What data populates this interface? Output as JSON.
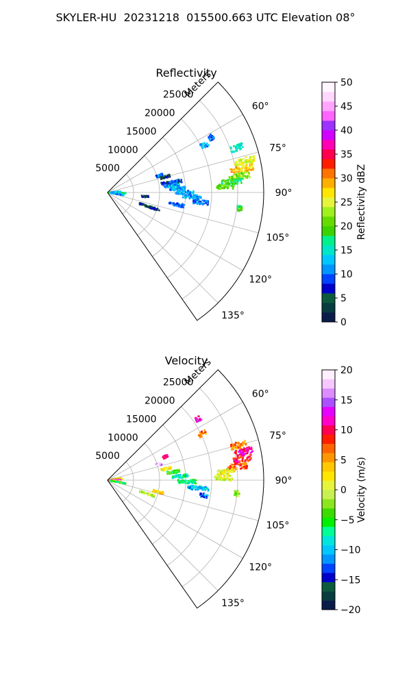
{
  "figure": {
    "title": "SKYLER-HU  20231218  015500.663 UTC Elevation 08°"
  },
  "chart_data": [
    {
      "type": "heatmap",
      "subtype": "polar-sector-radar-ppi",
      "title": "Reflectivity",
      "radial_axis_label": "Meters",
      "radial_ticks": [
        5000,
        10000,
        15000,
        20000,
        25000
      ],
      "radial_tick_labels": [
        "5000",
        "10000",
        "15000",
        "20000",
        "25000"
      ],
      "rlim": [
        0,
        30000
      ],
      "theta_range_deg": [
        45,
        145
      ],
      "theta_ticks": [
        60,
        75,
        90,
        105,
        120,
        135
      ],
      "theta_tick_labels": [
        "60°",
        "75°",
        "90°",
        "105°",
        "120°",
        "135°"
      ],
      "grid": true,
      "colorbar": {
        "label": "Reflectivity dBZ",
        "range": [
          0,
          50
        ],
        "ticks": [
          0,
          5,
          10,
          15,
          20,
          25,
          30,
          35,
          40,
          45,
          50
        ],
        "tick_labels": [
          "0",
          "5",
          "10",
          "15",
          "20",
          "25",
          "30",
          "35",
          "40",
          "45",
          "50"
        ],
        "colors": [
          "#0b1b4a",
          "#083d3f",
          "#0c5b3d",
          "#0000c8",
          "#0044ff",
          "#0096ff",
          "#00c8ff",
          "#00e6c8",
          "#00f08c",
          "#3cd200",
          "#64dc00",
          "#a0f01e",
          "#e6f53c",
          "#ffe600",
          "#ffaf00",
          "#ff7300",
          "#ff1e00",
          "#ff0050",
          "#ff00b4",
          "#d200ff",
          "#9b32ff",
          "#ff64ff",
          "#ffa5ff",
          "#ffd7ff",
          "#fff5ff"
        ]
      },
      "clusters": [
        {
          "theta_deg": 88,
          "r_min": 200,
          "r_max": 2500,
          "value": 14
        },
        {
          "theta_deg": 92,
          "r_min": 300,
          "r_max": 3500,
          "value": 18
        },
        {
          "theta_deg": 97,
          "r_min": 500,
          "r_max": 3000,
          "value": 14
        },
        {
          "theta_deg": 99,
          "r_min": 900,
          "r_max": 3200,
          "value": 12
        },
        {
          "theta_deg": 86,
          "r_min": 800,
          "r_max": 2500,
          "value": 12
        },
        {
          "theta_deg": 72,
          "r_min": 9800,
          "r_max": 11200,
          "value": 10
        },
        {
          "theta_deg": 75,
          "r_min": 10500,
          "r_max": 12500,
          "value": 5
        },
        {
          "theta_deg": 81,
          "r_min": 10500,
          "r_max": 14500,
          "value": 8
        },
        {
          "theta_deg": 84,
          "r_min": 11000,
          "r_max": 14000,
          "value": 12
        },
        {
          "theta_deg": 87,
          "r_min": 12000,
          "r_max": 15000,
          "value": 12
        },
        {
          "theta_deg": 90,
          "r_min": 13000,
          "r_max": 16500,
          "value": 12
        },
        {
          "theta_deg": 93,
          "r_min": 14500,
          "r_max": 18000,
          "value": 12
        },
        {
          "theta_deg": 96,
          "r_min": 16500,
          "r_max": 19500,
          "value": 10
        },
        {
          "theta_deg": 100,
          "r_min": 12000,
          "r_max": 15000,
          "value": 10
        },
        {
          "theta_deg": 109,
          "r_min": 6500,
          "r_max": 10500,
          "value": 5
        },
        {
          "theta_deg": 64,
          "r_min": 20000,
          "r_max": 21500,
          "value": 12
        },
        {
          "theta_deg": 71,
          "r_min": 25000,
          "r_max": 27500,
          "value": 15
        },
        {
          "theta_deg": 77,
          "r_min": 25000,
          "r_max": 29000,
          "value": 25
        },
        {
          "theta_deg": 80,
          "r_min": 24000,
          "r_max": 28500,
          "value": 28
        },
        {
          "theta_deg": 83,
          "r_min": 23500,
          "r_max": 27500,
          "value": 22
        },
        {
          "theta_deg": 85,
          "r_min": 22000,
          "r_max": 26000,
          "value": 18
        },
        {
          "theta_deg": 87,
          "r_min": 21000,
          "r_max": 24500,
          "value": 20
        },
        {
          "theta_deg": 97,
          "r_min": 25000,
          "r_max": 26000,
          "value": 18
        },
        {
          "theta_deg": 62,
          "r_min": 22000,
          "r_max": 23000,
          "value": 10
        },
        {
          "theta_deg": 96,
          "r_min": 6500,
          "r_max": 8000,
          "value": 5
        }
      ]
    },
    {
      "type": "heatmap",
      "subtype": "polar-sector-radar-ppi",
      "title": "Velocity",
      "radial_axis_label": "Meters",
      "radial_ticks": [
        5000,
        10000,
        15000,
        20000,
        25000
      ],
      "radial_tick_labels": [
        "5000",
        "10000",
        "15000",
        "20000",
        "25000"
      ],
      "rlim": [
        0,
        30000
      ],
      "theta_range_deg": [
        45,
        145
      ],
      "theta_ticks": [
        60,
        75,
        90,
        105,
        120,
        135
      ],
      "theta_tick_labels": [
        "60°",
        "75°",
        "90°",
        "105°",
        "120°",
        "135°"
      ],
      "grid": true,
      "colorbar": {
        "label": "Velocity (m/s)",
        "range": [
          -20,
          20
        ],
        "ticks": [
          -20,
          -15,
          -10,
          -5,
          0,
          5,
          10,
          15,
          20
        ],
        "tick_labels": [
          "−20",
          "−15",
          "−10",
          "−5",
          "0",
          "5",
          "10",
          "15",
          "20"
        ],
        "colors": [
          "#0b1b4a",
          "#083d3f",
          "#0c5b3d",
          "#0000c8",
          "#0044ff",
          "#0096ff",
          "#00c8ff",
          "#00e6dc",
          "#00ff96",
          "#00f000",
          "#3cdc00",
          "#8ce61e",
          "#c8f050",
          "#e6f53c",
          "#ffe600",
          "#ffc800",
          "#ff9600",
          "#ff6400",
          "#ff1e00",
          "#ff0050",
          "#ff00c8",
          "#e600ff",
          "#aa50ff",
          "#dc8cff",
          "#f5c8ff",
          "#fff0ff"
        ]
      },
      "clusters": [
        {
          "theta_deg": 80,
          "r_min": 300,
          "r_max": 2500,
          "value": -2
        },
        {
          "theta_deg": 85,
          "r_min": 200,
          "r_max": 3000,
          "value": 3
        },
        {
          "theta_deg": 89,
          "r_min": 200,
          "r_max": 2500,
          "value": 12
        },
        {
          "theta_deg": 93,
          "r_min": 300,
          "r_max": 2500,
          "value": 16
        },
        {
          "theta_deg": 97,
          "r_min": 400,
          "r_max": 2500,
          "value": 5
        },
        {
          "theta_deg": 100,
          "r_min": 600,
          "r_max": 3500,
          "value": -5
        },
        {
          "theta_deg": 73,
          "r_min": 9800,
          "r_max": 11000,
          "value": 17
        },
        {
          "theta_deg": 79,
          "r_min": 10500,
          "r_max": 12500,
          "value": 2
        },
        {
          "theta_deg": 83,
          "r_min": 11500,
          "r_max": 14000,
          "value": -5
        },
        {
          "theta_deg": 87,
          "r_min": 12500,
          "r_max": 15500,
          "value": -8
        },
        {
          "theta_deg": 91,
          "r_min": 13500,
          "r_max": 17000,
          "value": -7
        },
        {
          "theta_deg": 95,
          "r_min": 15500,
          "r_max": 19500,
          "value": -10
        },
        {
          "theta_deg": 99,
          "r_min": 18000,
          "r_max": 19500,
          "value": -12
        },
        {
          "theta_deg": 109,
          "r_min": 6500,
          "r_max": 9500,
          "value": -1
        },
        {
          "theta_deg": 103,
          "r_min": 9000,
          "r_max": 11000,
          "value": 3
        },
        {
          "theta_deg": 64,
          "r_min": 19500,
          "r_max": 21000,
          "value": 6
        },
        {
          "theta_deg": 75,
          "r_min": 24500,
          "r_max": 27500,
          "value": 6
        },
        {
          "theta_deg": 78,
          "r_min": 25000,
          "r_max": 28500,
          "value": 11
        },
        {
          "theta_deg": 81,
          "r_min": 24500,
          "r_max": 28000,
          "value": 9
        },
        {
          "theta_deg": 84,
          "r_min": 23000,
          "r_max": 27000,
          "value": 7
        },
        {
          "theta_deg": 86,
          "r_min": 21000,
          "r_max": 24500,
          "value": 1
        },
        {
          "theta_deg": 89,
          "r_min": 20500,
          "r_max": 24000,
          "value": 0
        },
        {
          "theta_deg": 96,
          "r_min": 24500,
          "r_max": 25500,
          "value": -2
        },
        {
          "theta_deg": 68,
          "r_min": 11500,
          "r_max": 12500,
          "value": 10
        },
        {
          "theta_deg": 56,
          "r_min": 20500,
          "r_max": 21500,
          "value": 12
        }
      ]
    }
  ]
}
